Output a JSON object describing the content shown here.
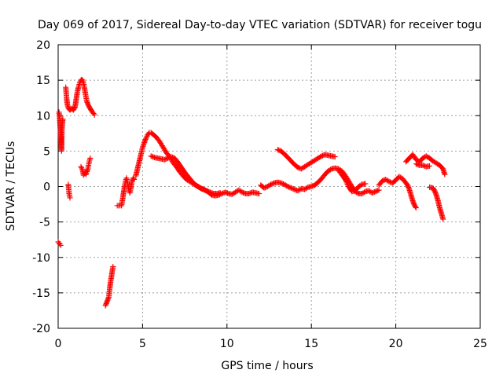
{
  "chart_data": {
    "type": "scatter",
    "title": "Day 069 of 2017, Sidereal Day-to-day VTEC variation (SDTVAR) for receiver togu",
    "xlabel": "GPS time / hours",
    "ylabel": "SDTVAR / TECUs",
    "xlim": [
      0,
      25
    ],
    "ylim": [
      -20,
      20
    ],
    "xticks": [
      0,
      5,
      10,
      15,
      20,
      25
    ],
    "yticks": [
      -20,
      -15,
      -10,
      -5,
      0,
      5,
      10,
      15,
      20
    ],
    "grid": true,
    "marker": "+",
    "color": "#ff0000",
    "series": [
      {
        "name": "SDTVAR",
        "segments": [
          [
            [
              0.0,
              -7.8
            ],
            [
              0.05,
              -8.0
            ],
            [
              0.1,
              -8.1
            ],
            [
              0.15,
              -8.3
            ]
          ],
          [
            [
              0.05,
              10.5
            ],
            [
              0.08,
              10.0
            ],
            [
              0.1,
              9.3
            ],
            [
              0.12,
              8.5
            ],
            [
              0.15,
              7.5
            ],
            [
              0.17,
              6.5
            ],
            [
              0.19,
              5.5
            ],
            [
              0.2,
              5.0
            ],
            [
              0.22,
              8.0
            ],
            [
              0.25,
              9.0
            ],
            [
              0.28,
              9.5
            ]
          ],
          [
            [
              0.45,
              14.0
            ],
            [
              0.5,
              12.5
            ],
            [
              0.55,
              11.5
            ],
            [
              0.62,
              11.0
            ],
            [
              0.7,
              10.8
            ],
            [
              0.8,
              11.0
            ],
            [
              0.9,
              10.8
            ],
            [
              1.0,
              11.2
            ],
            [
              1.05,
              12.0
            ],
            [
              1.1,
              12.8
            ],
            [
              1.15,
              13.5
            ],
            [
              1.2,
              14.0
            ],
            [
              1.25,
              14.4
            ],
            [
              1.3,
              14.8
            ],
            [
              1.35,
              15.0
            ],
            [
              1.4,
              15.1
            ],
            [
              1.45,
              15.0
            ],
            [
              1.5,
              14.6
            ],
            [
              1.55,
              14.0
            ],
            [
              1.6,
              13.3
            ],
            [
              1.65,
              12.6
            ],
            [
              1.7,
              12.0
            ],
            [
              1.8,
              11.4
            ],
            [
              1.9,
              11.0
            ],
            [
              2.0,
              10.6
            ],
            [
              2.1,
              10.3
            ],
            [
              2.15,
              10.1
            ]
          ],
          [
            [
              0.6,
              0.3
            ],
            [
              0.65,
              -1.0
            ],
            [
              0.7,
              -1.6
            ]
          ],
          [
            [
              1.35,
              2.8
            ],
            [
              1.45,
              2.3
            ],
            [
              1.5,
              1.6
            ],
            [
              1.55,
              1.8
            ],
            [
              1.6,
              2.0
            ],
            [
              1.65,
              1.7
            ],
            [
              1.7,
              2.1
            ],
            [
              1.75,
              2.4
            ],
            [
              1.8,
              3.0
            ],
            [
              1.85,
              3.6
            ],
            [
              1.9,
              4.0
            ]
          ],
          [
            [
              2.8,
              -16.8
            ],
            [
              2.85,
              -16.5
            ],
            [
              2.9,
              -16.2
            ],
            [
              2.95,
              -15.9
            ],
            [
              3.0,
              -15.6
            ],
            [
              3.05,
              -14.5
            ],
            [
              3.1,
              -13.5
            ],
            [
              3.15,
              -12.8
            ],
            [
              3.2,
              -12.0
            ],
            [
              3.25,
              -11.3
            ]
          ],
          [
            [
              3.5,
              -2.7
            ],
            [
              3.75,
              -2.7
            ],
            [
              3.8,
              -2.0
            ],
            [
              3.85,
              -1.3
            ],
            [
              3.9,
              -0.5
            ],
            [
              3.95,
              0.2
            ],
            [
              4.0,
              0.8
            ],
            [
              4.05,
              1.2
            ],
            [
              4.1,
              0.6
            ],
            [
              4.15,
              0.0
            ],
            [
              4.2,
              -0.5
            ],
            [
              4.25,
              -0.9
            ],
            [
              4.3,
              -0.3
            ],
            [
              4.35,
              0.5
            ],
            [
              4.4,
              0.9
            ],
            [
              4.45,
              1.2
            ],
            [
              4.5,
              1.0
            ]
          ],
          [
            [
              4.6,
              1.5
            ],
            [
              4.7,
              2.5
            ],
            [
              4.8,
              3.5
            ],
            [
              4.9,
              4.5
            ],
            [
              5.0,
              5.5
            ],
            [
              5.1,
              6.2
            ],
            [
              5.2,
              6.8
            ],
            [
              5.3,
              7.3
            ],
            [
              5.4,
              7.6
            ],
            [
              5.5,
              7.6
            ],
            [
              5.6,
              7.4
            ],
            [
              5.8,
              7.0
            ],
            [
              6.0,
              6.4
            ],
            [
              6.2,
              5.6
            ],
            [
              6.4,
              4.8
            ],
            [
              6.6,
              4.2
            ],
            [
              6.8,
              3.4
            ],
            [
              7.0,
              2.8
            ],
            [
              7.2,
              2.1
            ],
            [
              7.4,
              1.5
            ],
            [
              7.6,
              1.0
            ],
            [
              7.8,
              0.7
            ],
            [
              8.0,
              0.4
            ],
            [
              8.2,
              0.1
            ],
            [
              8.4,
              -0.2
            ],
            [
              8.6,
              -0.4
            ],
            [
              8.8,
              -0.6
            ],
            [
              9.0,
              -0.8
            ],
            [
              9.2,
              -1.0
            ],
            [
              9.4,
              -1.0
            ],
            [
              9.6,
              -0.9
            ]
          ],
          [
            [
              5.5,
              4.3
            ],
            [
              5.7,
              4.1
            ],
            [
              5.9,
              4.0
            ],
            [
              6.1,
              3.9
            ],
            [
              6.3,
              3.8
            ],
            [
              6.5,
              4.0
            ],
            [
              6.7,
              4.2
            ],
            [
              6.9,
              4.0
            ],
            [
              7.1,
              3.4
            ],
            [
              7.3,
              2.7
            ],
            [
              7.5,
              2.0
            ],
            [
              7.7,
              1.4
            ],
            [
              7.9,
              0.8
            ],
            [
              8.1,
              0.3
            ],
            [
              8.3,
              0.0
            ],
            [
              8.5,
              -0.3
            ],
            [
              8.7,
              -0.5
            ],
            [
              8.9,
              -0.8
            ],
            [
              9.1,
              -1.2
            ],
            [
              9.3,
              -1.3
            ],
            [
              9.5,
              -1.2
            ],
            [
              9.7,
              -1.0
            ],
            [
              9.9,
              -0.8
            ],
            [
              10.1,
              -1.0
            ],
            [
              10.3,
              -1.1
            ],
            [
              10.5,
              -0.8
            ],
            [
              10.7,
              -0.5
            ],
            [
              10.9,
              -0.8
            ],
            [
              11.1,
              -1.0
            ],
            [
              11.3,
              -1.0
            ],
            [
              11.5,
              -0.8
            ],
            [
              11.7,
              -0.9
            ],
            [
              11.9,
              -1.0
            ]
          ],
          [
            [
              12.0,
              0.2
            ],
            [
              12.2,
              -0.2
            ],
            [
              12.4,
              0.0
            ],
            [
              12.6,
              0.3
            ],
            [
              12.8,
              0.5
            ],
            [
              13.0,
              0.6
            ],
            [
              13.2,
              0.5
            ],
            [
              13.4,
              0.3
            ],
            [
              13.6,
              0.0
            ],
            [
              13.8,
              -0.2
            ],
            [
              14.0,
              -0.4
            ],
            [
              14.2,
              -0.6
            ],
            [
              14.4,
              -0.3
            ],
            [
              14.6,
              -0.4
            ],
            [
              14.8,
              -0.1
            ],
            [
              15.0,
              0.0
            ],
            [
              15.2,
              0.2
            ],
            [
              15.4,
              0.6
            ],
            [
              15.6,
              1.1
            ],
            [
              15.8,
              1.7
            ],
            [
              16.0,
              2.2
            ],
            [
              16.2,
              2.5
            ],
            [
              16.4,
              2.6
            ],
            [
              16.6,
              2.5
            ],
            [
              16.8,
              2.2
            ],
            [
              17.0,
              1.6
            ],
            [
              17.2,
              0.8
            ],
            [
              17.4,
              0.0
            ],
            [
              17.6,
              -0.7
            ],
            [
              17.8,
              -1.0
            ],
            [
              18.0,
              -1.0
            ],
            [
              18.2,
              -0.7
            ],
            [
              18.4,
              -0.6
            ],
            [
              18.6,
              -0.9
            ],
            [
              18.8,
              -0.7
            ],
            [
              19.0,
              -0.5
            ]
          ],
          [
            [
              13.0,
              5.2
            ],
            [
              13.2,
              5.0
            ],
            [
              13.4,
              4.6
            ],
            [
              13.6,
              4.1
            ],
            [
              13.8,
              3.6
            ],
            [
              14.0,
              3.1
            ],
            [
              14.2,
              2.7
            ],
            [
              14.4,
              2.5
            ],
            [
              14.6,
              2.8
            ],
            [
              14.8,
              3.1
            ],
            [
              15.0,
              3.4
            ],
            [
              15.2,
              3.7
            ],
            [
              15.4,
              4.0
            ],
            [
              15.6,
              4.3
            ],
            [
              15.8,
              4.5
            ],
            [
              16.0,
              4.4
            ],
            [
              16.2,
              4.3
            ],
            [
              16.4,
              4.2
            ]
          ],
          [
            [
              16.6,
              2.3
            ],
            [
              16.8,
              1.7
            ],
            [
              17.0,
              1.0
            ],
            [
              17.2,
              0.0
            ],
            [
              17.4,
              -0.7
            ],
            [
              17.6,
              -0.6
            ],
            [
              17.8,
              0.0
            ],
            [
              18.0,
              0.3
            ],
            [
              18.2,
              0.4
            ]
          ],
          [
            [
              19.0,
              0.2
            ],
            [
              19.2,
              0.8
            ],
            [
              19.4,
              1.0
            ],
            [
              19.6,
              0.7
            ],
            [
              19.8,
              0.5
            ],
            [
              20.0,
              0.9
            ],
            [
              20.2,
              1.4
            ],
            [
              20.4,
              1.1
            ],
            [
              20.5,
              0.8
            ],
            [
              20.7,
              0.2
            ],
            [
              20.8,
              -0.4
            ],
            [
              20.9,
              -1.2
            ],
            [
              21.0,
              -2.0
            ],
            [
              21.1,
              -2.6
            ],
            [
              21.2,
              -3.0
            ]
          ],
          [
            [
              20.6,
              3.5
            ],
            [
              20.8,
              4.0
            ],
            [
              21.0,
              4.5
            ],
            [
              21.1,
              4.2
            ],
            [
              21.2,
              3.8
            ],
            [
              21.4,
              3.5
            ],
            [
              21.6,
              4.0
            ],
            [
              21.8,
              4.3
            ],
            [
              22.0,
              4.0
            ],
            [
              22.2,
              3.6
            ],
            [
              22.4,
              3.3
            ],
            [
              22.6,
              3.0
            ],
            [
              22.8,
              2.5
            ],
            [
              22.9,
              1.7
            ]
          ],
          [
            [
              21.2,
              3.2
            ],
            [
              21.4,
              3.0
            ],
            [
              21.6,
              3.0
            ],
            [
              21.8,
              2.8
            ],
            [
              22.0,
              2.9
            ]
          ],
          [
            [
              22.0,
              -0.1
            ],
            [
              22.2,
              -0.2
            ],
            [
              22.3,
              -0.6
            ],
            [
              22.4,
              -1.2
            ],
            [
              22.5,
              -2.0
            ],
            [
              22.6,
              -3.0
            ],
            [
              22.7,
              -3.8
            ],
            [
              22.8,
              -4.6
            ]
          ]
        ]
      }
    ]
  }
}
